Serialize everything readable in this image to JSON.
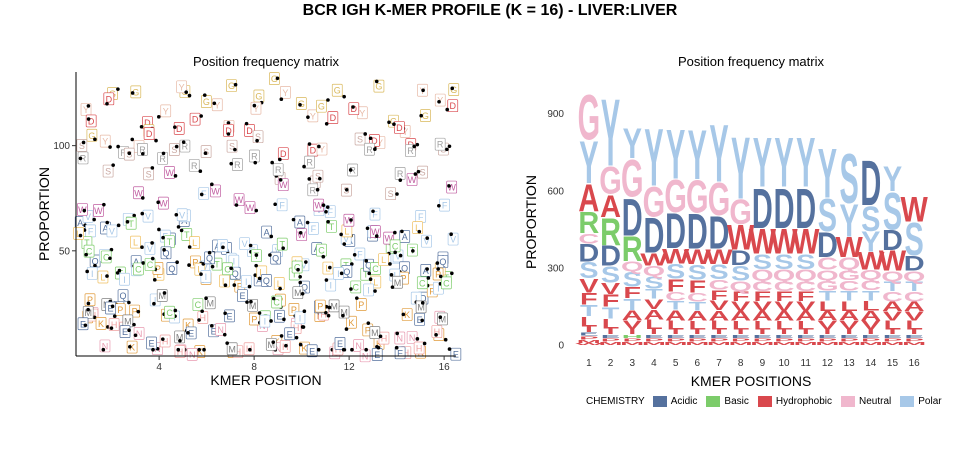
{
  "title": "BCR IGH K-MER PROFILE (K = 16) - LIVER:LIVER",
  "colors": {
    "Acidic": "#55719E",
    "Basic": "#7CCC6A",
    "Hydrophobic": "#D9484D",
    "Neutral": "#F0B7CD",
    "Polar": "#A7C8E8"
  },
  "chart_data": [
    {
      "type": "scatter",
      "title": "Position frequency matrix",
      "xlabel": "KMER POSITION",
      "ylabel": "PROPORTION",
      "xlim": [
        0.5,
        16.5
      ],
      "ylim": [
        0,
        135
      ],
      "xticks": [
        4,
        8,
        12,
        16
      ],
      "yticks": [
        50,
        100
      ],
      "grid": false,
      "letters": [
        "G",
        "Y",
        "D",
        "S",
        "R",
        "K",
        "N",
        "H",
        "A",
        "F",
        "V",
        "T",
        "L",
        "Q",
        "W",
        "P",
        "I",
        "M",
        "C",
        "E"
      ]
    },
    {
      "type": "bar",
      "subtype": "sequence-logo",
      "title": "Position frequency matrix",
      "xlabel": "KMER POSITIONS",
      "ylabel": "PROPORTION",
      "categories": [
        "1",
        "2",
        "3",
        "4",
        "5",
        "6",
        "7",
        "8",
        "9",
        "10",
        "11",
        "12",
        "13",
        "14",
        "15",
        "16"
      ],
      "ylim": [
        0,
        1000
      ],
      "yticks": [
        0,
        300,
        600,
        900
      ],
      "legend_title": "CHEMISTRY",
      "legend": [
        "Acidic",
        "Basic",
        "Hydrophobic",
        "Neutral",
        "Polar"
      ],
      "legend_position": "bottom",
      "series": [
        {
          "stack_bottom_to_top": [
            [
              "W",
              8
            ],
            [
              "M",
              14
            ],
            [
              "P",
              14
            ],
            [
              "E",
              14
            ],
            [
              "I",
              22
            ],
            [
              "L",
              40
            ],
            [
              "T",
              45
            ],
            [
              "F",
              48
            ],
            [
              "V",
              55
            ],
            [
              "S",
              65
            ],
            [
              "D",
              70
            ],
            [
              "C",
              40
            ],
            [
              "R",
              85
            ],
            [
              "A",
              110
            ],
            [
              "Y",
              170
            ],
            [
              "G",
              180
            ]
          ]
        },
        {
          "stack_bottom_to_top": [
            [
              "M",
              14
            ],
            [
              "P",
              14
            ],
            [
              "E",
              14
            ],
            [
              "I",
              22
            ],
            [
              "L",
              40
            ],
            [
              "T",
              45
            ],
            [
              "F",
              50
            ],
            [
              "V",
              45
            ],
            [
              "S",
              65
            ],
            [
              "D",
              80
            ],
            [
              "R",
              110
            ],
            [
              "A",
              90
            ],
            [
              "G",
              110
            ],
            [
              "Y",
              270
            ]
          ]
        },
        {
          "stack_bottom_to_top": [
            [
              "M",
              14
            ],
            [
              "P",
              14
            ],
            [
              "H",
              14
            ],
            [
              "I",
              20
            ],
            [
              "V",
              35
            ],
            [
              "A",
              40
            ],
            [
              "T",
              45
            ],
            [
              "F",
              45
            ],
            [
              "S",
              60
            ],
            [
              "Q",
              40
            ],
            [
              "R",
              100
            ],
            [
              "D",
              150
            ],
            [
              "G",
              150
            ],
            [
              "Y",
              120
            ]
          ]
        },
        {
          "stack_bottom_to_top": [
            [
              "M",
              14
            ],
            [
              "P",
              14
            ],
            [
              "E",
              14
            ],
            [
              "I",
              20
            ],
            [
              "L",
              38
            ],
            [
              "A",
              40
            ],
            [
              "V",
              40
            ],
            [
              "T",
              40
            ],
            [
              "S",
              50
            ],
            [
              "Q",
              40
            ],
            [
              "W",
              50
            ],
            [
              "D",
              140
            ],
            [
              "G",
              120
            ],
            [
              "Y",
              230
            ]
          ]
        },
        {
          "stack_bottom_to_top": [
            [
              "M",
              14
            ],
            [
              "P",
              14
            ],
            [
              "E",
              14
            ],
            [
              "I",
              18
            ],
            [
              "L",
              36
            ],
            [
              "A",
              42
            ],
            [
              "T",
              35
            ],
            [
              "C",
              35
            ],
            [
              "F",
              50
            ],
            [
              "S",
              60
            ],
            [
              "W",
              60
            ],
            [
              "D",
              140
            ],
            [
              "G",
              130
            ],
            [
              "Y",
              200
            ]
          ]
        },
        {
          "stack_bottom_to_top": [
            [
              "M",
              14
            ],
            [
              "P",
              14
            ],
            [
              "E",
              14
            ],
            [
              "I",
              18
            ],
            [
              "L",
              35
            ],
            [
              "A",
              40
            ],
            [
              "T",
              35
            ],
            [
              "C",
              35
            ],
            [
              "F",
              50
            ],
            [
              "S",
              60
            ],
            [
              "W",
              60
            ],
            [
              "D",
              140
            ],
            [
              "G",
              130
            ],
            [
              "Y",
              200
            ]
          ]
        },
        {
          "stack_bottom_to_top": [
            [
              "M",
              14
            ],
            [
              "P",
              14
            ],
            [
              "E",
              14
            ],
            [
              "I",
              18
            ],
            [
              "L",
              36
            ],
            [
              "A",
              40
            ],
            [
              "V",
              40
            ],
            [
              "F",
              40
            ],
            [
              "C",
              40
            ],
            [
              "S",
              60
            ],
            [
              "W",
              60
            ],
            [
              "D",
              130
            ],
            [
              "G",
              130
            ],
            [
              "Y",
              230
            ]
          ]
        },
        {
          "stack_bottom_to_top": [
            [
              "M",
              14
            ],
            [
              "P",
              14
            ],
            [
              "E",
              14
            ],
            [
              "I",
              18
            ],
            [
              "L",
              35
            ],
            [
              "A",
              38
            ],
            [
              "V",
              38
            ],
            [
              "F",
              40
            ],
            [
              "Q",
              40
            ],
            [
              "S",
              60
            ],
            [
              "D",
              60
            ],
            [
              "W",
              100
            ],
            [
              "G",
              100
            ],
            [
              "Y",
              250
            ]
          ]
        },
        {
          "stack_bottom_to_top": [
            [
              "M",
              14
            ],
            [
              "P",
              14
            ],
            [
              "E",
              14
            ],
            [
              "I",
              18
            ],
            [
              "L",
              35
            ],
            [
              "A",
              38
            ],
            [
              "V",
              38
            ],
            [
              "F",
              40
            ],
            [
              "C",
              40
            ],
            [
              "Q",
              45
            ],
            [
              "S",
              60
            ],
            [
              "W",
              100
            ],
            [
              "D",
              160
            ],
            [
              "Y",
              200
            ]
          ]
        },
        {
          "stack_bottom_to_top": [
            [
              "M",
              14
            ],
            [
              "P",
              14
            ],
            [
              "E",
              14
            ],
            [
              "I",
              18
            ],
            [
              "L",
              35
            ],
            [
              "A",
              38
            ],
            [
              "V",
              38
            ],
            [
              "F",
              40
            ],
            [
              "C",
              40
            ],
            [
              "Q",
              45
            ],
            [
              "S",
              60
            ],
            [
              "W",
              100
            ],
            [
              "D",
              160
            ],
            [
              "Y",
              200
            ]
          ]
        },
        {
          "stack_bottom_to_top": [
            [
              "M",
              14
            ],
            [
              "P",
              14
            ],
            [
              "E",
              14
            ],
            [
              "I",
              18
            ],
            [
              "L",
              35
            ],
            [
              "A",
              38
            ],
            [
              "V",
              38
            ],
            [
              "F",
              40
            ],
            [
              "C",
              40
            ],
            [
              "Q",
              45
            ],
            [
              "S",
              60
            ],
            [
              "W",
              100
            ],
            [
              "D",
              160
            ],
            [
              "Y",
              200
            ]
          ]
        },
        {
          "stack_bottom_to_top": [
            [
              "M",
              14
            ],
            [
              "P",
              14
            ],
            [
              "E",
              14
            ],
            [
              "I",
              18
            ],
            [
              "V",
              35
            ],
            [
              "A",
              38
            ],
            [
              "L",
              40
            ],
            [
              "T",
              40
            ],
            [
              "G",
              40
            ],
            [
              "Q",
              40
            ],
            [
              "C",
              50
            ],
            [
              "D",
              100
            ],
            [
              "S",
              130
            ],
            [
              "Y",
              200
            ]
          ]
        },
        {
          "stack_bottom_to_top": [
            [
              "M",
              14
            ],
            [
              "P",
              14
            ],
            [
              "E",
              14
            ],
            [
              "I",
              18
            ],
            [
              "V",
              35
            ],
            [
              "A",
              38
            ],
            [
              "L",
              40
            ],
            [
              "T",
              40
            ],
            [
              "C",
              40
            ],
            [
              "G",
              40
            ],
            [
              "Q",
              50
            ],
            [
              "W",
              80
            ],
            [
              "Y",
              130
            ],
            [
              "S",
              200
            ]
          ]
        },
        {
          "stack_bottom_to_top": [
            [
              "M",
              14
            ],
            [
              "P",
              14
            ],
            [
              "E",
              14
            ],
            [
              "I",
              18
            ],
            [
              "V",
              36
            ],
            [
              "A",
              38
            ],
            [
              "L",
              40
            ],
            [
              "T",
              40
            ],
            [
              "C",
              40
            ],
            [
              "Q",
              40
            ],
            [
              "W",
              70
            ],
            [
              "Y",
              80
            ],
            [
              "S",
              100
            ],
            [
              "D",
              180
            ]
          ]
        },
        {
          "stack_bottom_to_top": [
            [
              "M",
              14
            ],
            [
              "P",
              14
            ],
            [
              "E",
              14
            ],
            [
              "I",
              18
            ],
            [
              "L",
              36
            ],
            [
              "V",
              36
            ],
            [
              "A",
              38
            ],
            [
              "C",
              40
            ],
            [
              "T",
              40
            ],
            [
              "Q",
              40
            ],
            [
              "W",
              80
            ],
            [
              "D",
              80
            ],
            [
              "S",
              150
            ],
            [
              "Y",
              100
            ]
          ]
        },
        {
          "stack_bottom_to_top": [
            [
              "M",
              14
            ],
            [
              "P",
              14
            ],
            [
              "E",
              14
            ],
            [
              "I",
              18
            ],
            [
              "L",
              36
            ],
            [
              "V",
              36
            ],
            [
              "A",
              38
            ],
            [
              "C",
              40
            ],
            [
              "T",
              40
            ],
            [
              "Q",
              40
            ],
            [
              "D",
              60
            ],
            [
              "S",
              130
            ],
            [
              "W",
              100
            ]
          ]
        }
      ]
    }
  ]
}
